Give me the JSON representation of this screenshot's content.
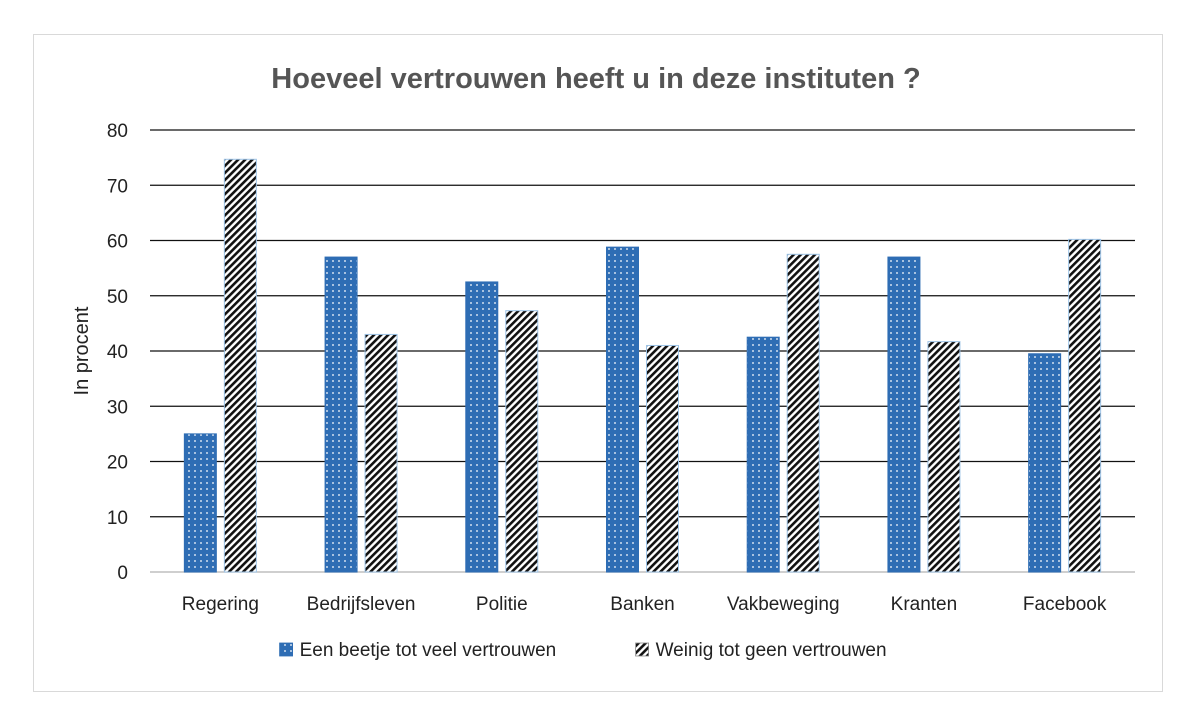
{
  "chart_data": {
    "type": "bar",
    "title": "Hoeveel vertrouwen heeft u in deze instituten ?",
    "xlabel": "",
    "ylabel": "In procent",
    "ylim": [
      0,
      80
    ],
    "yticks": [
      0,
      10,
      20,
      30,
      40,
      50,
      60,
      70,
      80
    ],
    "grid": true,
    "legend_position": "bottom",
    "categories": [
      "Regering",
      "Bedrijfsleven",
      "Politie",
      "Banken",
      "Vakbeweging",
      "Kranten",
      "Facebook"
    ],
    "series": [
      {
        "name": "Een beetje tot veel vertrouwen",
        "color": "#2e6db4",
        "pattern": "dots",
        "values": [
          25,
          57,
          52.5,
          58.8,
          42.5,
          57,
          39.5
        ]
      },
      {
        "name": "Weinig tot geen vertrouwen",
        "color": "#000000",
        "pattern": "diagonal-stripes",
        "values": [
          74.7,
          43,
          47.3,
          41,
          57.5,
          41.7,
          60.2
        ]
      }
    ]
  }
}
